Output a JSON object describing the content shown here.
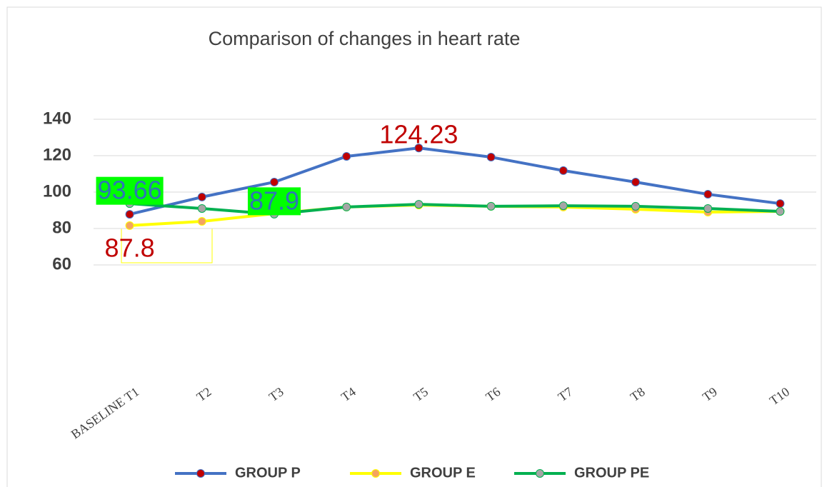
{
  "chart_data": {
    "type": "line",
    "title": "Comparison of changes in heart rate",
    "categories": [
      "BASELINE T1",
      "T2",
      "T3",
      "T4",
      "T5",
      "T6",
      "T7",
      "T8",
      "T9",
      "T10"
    ],
    "series": [
      {
        "name": "GROUP P",
        "color": "#4472c4",
        "marker_color": "#c00000",
        "values": [
          87.8,
          97.3,
          105.5,
          119.6,
          124.23,
          119.2,
          111.8,
          105.5,
          98.8,
          93.7
        ],
        "value_labels": [
          "87.8",
          null,
          null,
          null,
          "124.23",
          null,
          null,
          null,
          null,
          null
        ],
        "label_color": "#c00000"
      },
      {
        "name": "GROUP E",
        "color": "#ffff00",
        "marker_color": "#f4a460",
        "values": [
          81.6,
          83.9,
          88.2,
          91.8,
          92.9,
          92.2,
          91.8,
          90.6,
          89.0,
          89.4
        ]
      },
      {
        "name": "GROUP PE",
        "color": "#00b050",
        "marker_color": "#a5a5a5",
        "values": [
          93.66,
          91.0,
          87.9,
          91.8,
          93.3,
          92.2,
          92.5,
          92.2,
          91.0,
          89.4
        ],
        "value_labels": [
          "93.66",
          null,
          "87.9",
          null,
          null,
          null,
          null,
          null,
          null,
          null
        ],
        "label_color": "#2e75b6",
        "label_background": "#00ff00"
      }
    ],
    "ylim": [
      0,
      180
    ],
    "yticks": [
      60,
      80,
      100,
      120,
      140
    ],
    "grid": true
  }
}
